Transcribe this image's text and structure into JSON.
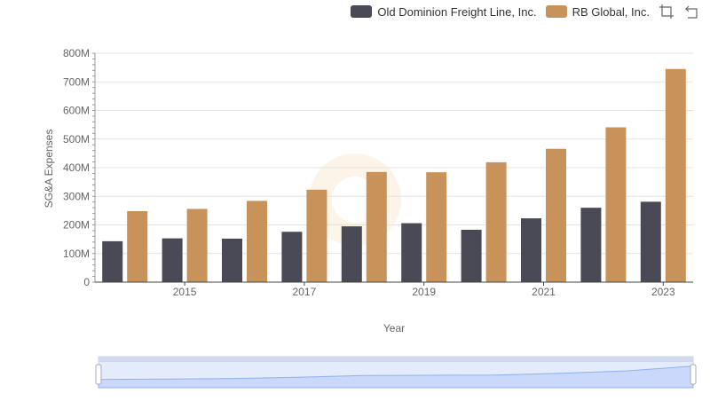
{
  "chart_data": {
    "type": "bar",
    "xlabel": "Year",
    "ylabel": "SG&A Expenses",
    "ylim": [
      0,
      800000000
    ],
    "y_ticks": [
      "0",
      "100M",
      "200M",
      "300M",
      "400M",
      "500M",
      "600M",
      "700M",
      "800M"
    ],
    "x_tick_labels": [
      "2015",
      "2017",
      "2019",
      "2021",
      "2023"
    ],
    "categories": [
      "2014",
      "2015",
      "2016",
      "2017",
      "2018",
      "2019",
      "2020",
      "2021",
      "2022",
      "2023"
    ],
    "series": [
      {
        "name": "Old Dominion Freight Line, Inc.",
        "color": "#4a4a56",
        "values": [
          143000000,
          153000000,
          152000000,
          176000000,
          195000000,
          206000000,
          183000000,
          223000000,
          260000000,
          281000000
        ]
      },
      {
        "name": "RB Global, Inc.",
        "color": "#c8935a",
        "values": [
          248000000,
          256000000,
          284000000,
          323000000,
          385000000,
          384000000,
          419000000,
          466000000,
          541000000,
          745000000
        ]
      }
    ],
    "legend_position": "top-right",
    "grid": true
  },
  "toolbox": {
    "icons": [
      "zoom-icon",
      "restore-icon"
    ]
  },
  "datazoom": {
    "start": 0,
    "end": 100
  }
}
